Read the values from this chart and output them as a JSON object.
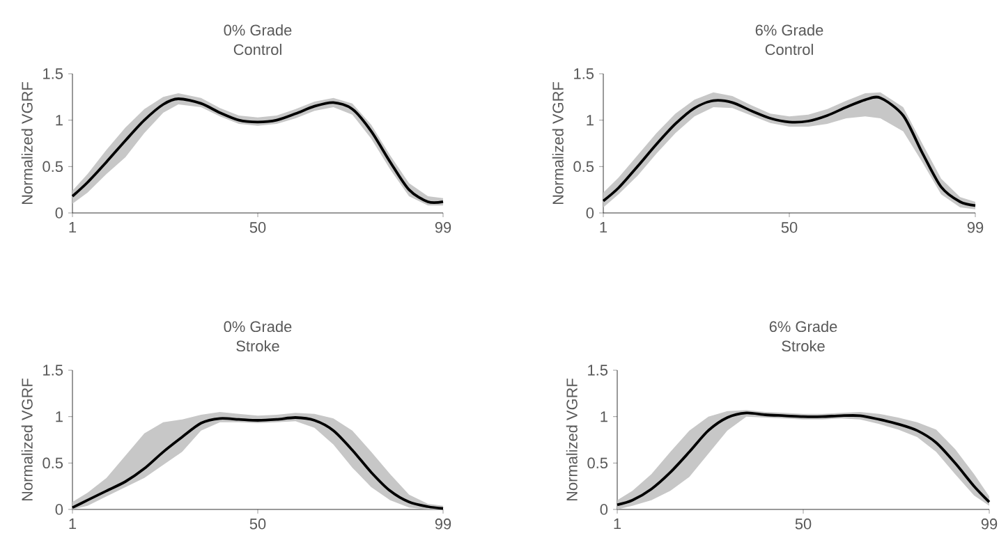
{
  "chart_data": [
    {
      "type": "line",
      "title": "0% Grade",
      "subtitle": "Control",
      "ylabel": "Normalized VGRF",
      "xlim": [
        1,
        99
      ],
      "xticks": [
        1,
        50,
        99
      ],
      "ylim": [
        0,
        1.5
      ],
      "yticks": [
        0,
        0.5,
        1,
        1.5
      ],
      "x": [
        1,
        5,
        10,
        15,
        20,
        25,
        29,
        35,
        40,
        45,
        50,
        55,
        60,
        65,
        70,
        75,
        80,
        85,
        90,
        95,
        99
      ],
      "series": [
        {
          "color": "#000000",
          "values": [
            0.18,
            0.33,
            0.55,
            0.78,
            1.0,
            1.17,
            1.23,
            1.18,
            1.08,
            1.0,
            0.98,
            1.0,
            1.07,
            1.15,
            1.19,
            1.12,
            0.88,
            0.55,
            0.25,
            0.12,
            0.12
          ],
          "lower": [
            0.1,
            0.22,
            0.42,
            0.6,
            0.86,
            1.08,
            1.17,
            1.14,
            1.04,
            0.96,
            0.94,
            0.96,
            1.02,
            1.1,
            1.14,
            1.06,
            0.8,
            0.47,
            0.18,
            0.08,
            0.08
          ],
          "upper": [
            0.24,
            0.42,
            0.68,
            0.92,
            1.12,
            1.25,
            1.29,
            1.24,
            1.13,
            1.05,
            1.03,
            1.05,
            1.12,
            1.2,
            1.24,
            1.18,
            0.95,
            0.62,
            0.32,
            0.18,
            0.16
          ]
        }
      ]
    },
    {
      "type": "line",
      "title": "6% Grade",
      "subtitle": "Control",
      "ylabel": "Normalized VGRF",
      "xlim": [
        1,
        99
      ],
      "xticks": [
        1,
        50,
        99
      ],
      "ylim": [
        0,
        1.5
      ],
      "yticks": [
        0,
        0.5,
        1,
        1.5
      ],
      "x": [
        1,
        5,
        10,
        15,
        20,
        25,
        30,
        35,
        40,
        45,
        50,
        55,
        60,
        65,
        70,
        74,
        80,
        85,
        90,
        95,
        99
      ],
      "series": [
        {
          "color": "#000000",
          "values": [
            0.13,
            0.27,
            0.5,
            0.74,
            0.96,
            1.13,
            1.21,
            1.19,
            1.1,
            1.02,
            0.98,
            0.99,
            1.05,
            1.14,
            1.22,
            1.24,
            1.05,
            0.65,
            0.28,
            0.12,
            0.08
          ],
          "lower": [
            0.06,
            0.2,
            0.4,
            0.64,
            0.86,
            1.04,
            1.14,
            1.13,
            1.05,
            0.97,
            0.93,
            0.93,
            0.96,
            1.02,
            1.04,
            1.02,
            0.88,
            0.55,
            0.2,
            0.06,
            0.04
          ],
          "upper": [
            0.22,
            0.38,
            0.62,
            0.86,
            1.07,
            1.22,
            1.3,
            1.26,
            1.16,
            1.07,
            1.04,
            1.06,
            1.12,
            1.21,
            1.29,
            1.3,
            1.14,
            0.75,
            0.37,
            0.17,
            0.12
          ]
        }
      ]
    },
    {
      "type": "line",
      "title": "0% Grade",
      "subtitle": "Stroke",
      "ylabel": "Normalized VGRF",
      "xlim": [
        1,
        99
      ],
      "xticks": [
        1,
        50,
        99
      ],
      "ylim": [
        0,
        1.5
      ],
      "yticks": [
        0,
        0.5,
        1,
        1.5
      ],
      "x": [
        1,
        5,
        10,
        15,
        20,
        25,
        30,
        35,
        40,
        45,
        50,
        55,
        60,
        65,
        70,
        75,
        80,
        85,
        90,
        95,
        99
      ],
      "series": [
        {
          "color": "#000000",
          "values": [
            0.02,
            0.1,
            0.2,
            0.3,
            0.44,
            0.62,
            0.78,
            0.93,
            0.98,
            0.97,
            0.96,
            0.97,
            0.99,
            0.96,
            0.85,
            0.64,
            0.4,
            0.2,
            0.08,
            0.03,
            0.01
          ],
          "lower": [
            0,
            0.04,
            0.14,
            0.24,
            0.34,
            0.48,
            0.62,
            0.85,
            0.94,
            0.94,
            0.93,
            0.94,
            0.95,
            0.88,
            0.7,
            0.45,
            0.24,
            0.1,
            0.02,
            0,
            0
          ],
          "upper": [
            0.08,
            0.18,
            0.34,
            0.58,
            0.82,
            0.94,
            0.97,
            1.02,
            1.05,
            1.03,
            1.01,
            1.02,
            1.04,
            1.03,
            0.98,
            0.85,
            0.62,
            0.38,
            0.16,
            0.06,
            0.04
          ]
        }
      ]
    },
    {
      "type": "line",
      "title": "6% Grade",
      "subtitle": "Stroke",
      "ylabel": "Normalized VGRF",
      "xlim": [
        1,
        99
      ],
      "xticks": [
        1,
        50,
        99
      ],
      "ylim": [
        0,
        1.5
      ],
      "yticks": [
        0,
        0.5,
        1,
        1.5
      ],
      "x": [
        1,
        5,
        10,
        15,
        20,
        25,
        30,
        35,
        40,
        45,
        50,
        55,
        60,
        65,
        70,
        75,
        80,
        85,
        90,
        95,
        99
      ],
      "series": [
        {
          "color": "#000000",
          "values": [
            0.05,
            0.1,
            0.22,
            0.4,
            0.62,
            0.85,
            0.99,
            1.04,
            1.02,
            1.01,
            1.0,
            1.0,
            1.01,
            1.01,
            0.97,
            0.92,
            0.85,
            0.72,
            0.5,
            0.25,
            0.08
          ],
          "lower": [
            0,
            0.04,
            0.1,
            0.2,
            0.35,
            0.6,
            0.85,
            1.0,
            0.99,
            0.98,
            0.97,
            0.97,
            0.98,
            0.97,
            0.92,
            0.86,
            0.78,
            0.62,
            0.38,
            0.15,
            0.04
          ],
          "upper": [
            0.1,
            0.2,
            0.38,
            0.62,
            0.85,
            1.0,
            1.06,
            1.07,
            1.05,
            1.04,
            1.03,
            1.03,
            1.04,
            1.05,
            1.03,
            0.99,
            0.94,
            0.86,
            0.65,
            0.38,
            0.14
          ]
        }
      ]
    }
  ]
}
